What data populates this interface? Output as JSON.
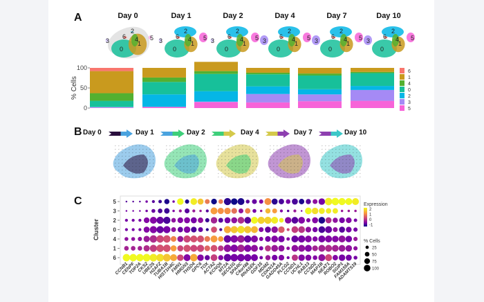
{
  "figure": {
    "panels": {
      "A": {
        "label": "A",
        "days": [
          "Day 0",
          "Day 1",
          "Day 2",
          "Day 4",
          "Day 7",
          "Day 10"
        ],
        "umap_cluster_labels": [
          [
            "3",
            "0",
            "6",
            "2",
            "4",
            "1",
            "5"
          ],
          [
            "3",
            "0",
            "2",
            "4",
            "1",
            "6",
            "5"
          ],
          [
            "3",
            "0",
            "6",
            "2",
            "4",
            "1",
            "5"
          ],
          [
            "3",
            "0",
            "6",
            "2",
            "4",
            "1",
            "5"
          ],
          [
            "3",
            "0",
            "6",
            "2",
            "4",
            "1",
            "5"
          ],
          [
            "3",
            "0",
            "6",
            "2",
            "4",
            "1",
            "5"
          ]
        ]
      },
      "B": {
        "label": "B",
        "days": [
          "Day 0",
          "Day 1",
          "Day 2",
          "Day 4",
          "Day 7",
          "Day 10"
        ],
        "arrow_colors": [
          [
            "#2a0f3d",
            "#4aa3df"
          ],
          [
            "#4aa3df",
            "#3ecf7a"
          ],
          [
            "#3ecf7a",
            "#d4c94a"
          ],
          [
            "#d4c94a",
            "#8e3fb0"
          ],
          [
            "#8e3fb0",
            "#3cc8c8"
          ]
        ]
      },
      "C": {
        "label": "C"
      }
    },
    "cluster_colors": {
      "6": "#f8766d",
      "1": "#c99a1e",
      "4": "#53b030",
      "0": "#17c09a",
      "2": "#05b6e6",
      "3": "#a58af5",
      "5": "#f763d8"
    }
  },
  "chart_data": [
    {
      "type": "bar",
      "subtype": "stacked-percent",
      "title": "",
      "xlabel": "",
      "ylabel": "% Cells",
      "ylim": [
        0,
        100
      ],
      "yticks": [
        "0",
        "50",
        "100"
      ],
      "categories": [
        "Day 0",
        "Day 1",
        "Day 2",
        "Day 4",
        "Day 7",
        "Day 10"
      ],
      "legend_position": "right",
      "legend_order": [
        "6",
        "1",
        "4",
        "0",
        "2",
        "3",
        "5"
      ],
      "stack_order_bottom_to_top": [
        "5",
        "3",
        "2",
        "0",
        "4",
        "1",
        "6"
      ],
      "series": [
        {
          "name": "5",
          "values": [
            1,
            3,
            15,
            14,
            17,
            18
          ]
        },
        {
          "name": "3",
          "values": [
            1,
            0,
            1,
            21,
            17,
            27
          ]
        },
        {
          "name": "2",
          "values": [
            1,
            31,
            26,
            19,
            13,
            10
          ]
        },
        {
          "name": "0",
          "values": [
            15,
            31,
            43,
            30,
            34,
            32
          ]
        },
        {
          "name": "4",
          "values": [
            19,
            11,
            7,
            4,
            5,
            3
          ]
        },
        {
          "name": "1",
          "values": [
            55,
            24,
            23,
            12,
            14,
            10
          ]
        },
        {
          "name": "6",
          "values": [
            8,
            0,
            0,
            0,
            0,
            0
          ]
        }
      ]
    },
    {
      "type": "scatter",
      "subtype": "dotplot",
      "title": "",
      "xlabel": "",
      "ylabel": "Cluster",
      "rows": [
        "5",
        "3",
        "2",
        "0",
        "4",
        "1",
        "6"
      ],
      "genes": [
        "CCNB1",
        "CENPF",
        "TOP2A",
        "CKS2",
        "UBE2S",
        "H2AFZ",
        "TUBA1B",
        "HIST1H4C",
        "FMN1",
        "HMGN3",
        "THSD4",
        "GPC6",
        "TOX",
        "ACTA2",
        "KCNQ5",
        "MT2A",
        "SEC61G",
        "SPARC",
        "C4orf48",
        "RNASEK",
        "GDF15",
        "MDM2",
        "CDKN1A",
        "GADD45A",
        "PLCG2",
        "CCND1",
        "UCHL1",
        "RAB13",
        "CCND2",
        "MAP1B",
        "NEAT1",
        "ROBO2",
        "SGIP1",
        "FAM155A",
        "ADAMTS19"
      ],
      "color_legend": {
        "title": "Expression",
        "ticks": [
          "2",
          "1",
          "0",
          "-1"
        ],
        "range": [
          -1,
          2
        ]
      },
      "size_legend": {
        "title": "% Cells",
        "values": [
          25,
          50,
          75,
          100
        ]
      },
      "expression": [
        [
          -0.5,
          -0.5,
          -0.5,
          -0.3,
          -0.5,
          -0.7,
          -0.9,
          -0.3,
          2.0,
          -0.9,
          1.9,
          1.6,
          1.0,
          -1.0,
          1.0,
          -0.8,
          -1.0,
          -0.9,
          -0.5,
          -0.4,
          -0.2,
          1.2,
          -0.8,
          -0.6,
          -0.3,
          -0.6,
          -0.9,
          -0.5,
          -0.1,
          -0.3,
          1.9,
          2.0,
          2.0,
          2.0,
          1.9
        ],
        [
          -0.3,
          -0.3,
          -0.3,
          -0.3,
          -0.4,
          -0.6,
          -0.7,
          -0.2,
          0.0,
          -0.5,
          0.0,
          0.0,
          -0.5,
          1.3,
          1.2,
          1.2,
          0.9,
          -0.1,
          1.1,
          -0.3,
          0.0,
          1.5,
          1.3,
          -0.2,
          -0.5,
          0.0,
          -0.2,
          2.0,
          1.8,
          1.9,
          1.9,
          1.9,
          0.0,
          0.0,
          0.0
        ],
        [
          -0.3,
          -0.3,
          -0.3,
          -0.2,
          -0.2,
          -0.4,
          -0.6,
          -0.1,
          -0.2,
          -0.2,
          -0.3,
          -0.1,
          -0.7,
          0.1,
          -0.5,
          -0.3,
          -0.1,
          0.2,
          -0.5,
          2.0,
          1.7,
          1.7,
          1.9,
          1.9,
          -0.2,
          -0.5,
          -0.2,
          -0.2,
          -0.2,
          -0.9,
          0.2,
          -0.1,
          -0.3,
          -0.2,
          -0.3
        ],
        [
          -0.3,
          -0.3,
          -0.3,
          -0.2,
          -0.2,
          -0.4,
          -0.3,
          -0.1,
          -0.4,
          -0.2,
          -0.6,
          -0.4,
          -0.8,
          0.6,
          -0.6,
          1.4,
          1.6,
          1.8,
          1.6,
          1.5,
          -0.2,
          -0.4,
          -0.1,
          0.7,
          0.5,
          0.4,
          0.3,
          -0.1,
          -0.3,
          -0.6,
          -0.4,
          -0.1,
          -0.5,
          -0.3,
          -0.3
        ],
        [
          -0.1,
          -0.1,
          -0.1,
          0.0,
          0.2,
          0.5,
          0.6,
          1.1,
          0.0,
          0.5,
          0.6,
          0.6,
          1.0,
          1.3,
          1.3,
          -0.4,
          -0.2,
          0.0,
          -0.4,
          -0.2,
          -0.2,
          -0.3,
          -0.2,
          -0.3,
          -0.2,
          -0.4,
          -0.3,
          -0.2,
          -0.2,
          -0.3,
          -0.2,
          -0.2,
          -0.1,
          -0.3,
          0.0
        ],
        [
          0.1,
          0.1,
          0.1,
          0.2,
          0.4,
          0.6,
          0.6,
          1.3,
          0.5,
          0.6,
          0.5,
          0.5,
          0.8,
          0.6,
          0.3,
          -0.1,
          -0.2,
          0.1,
          -0.2,
          -0.1,
          -0.2,
          0.3,
          0.0,
          -0.1,
          -0.1,
          -0.1,
          -0.1,
          -0.2,
          0.1,
          0.1,
          0.2,
          0.1,
          0.0,
          -0.1,
          -0.1
        ],
        [
          2.0,
          2.0,
          2.0,
          2.0,
          1.9,
          1.8,
          1.6,
          1.4,
          0.5,
          -0.2,
          1.4,
          -0.2,
          -0.4,
          0.4,
          -0.2,
          -0.4,
          -0.3,
          -0.3,
          -0.3,
          -0.3,
          -0.3,
          0.0,
          -0.3,
          -0.2,
          -0.3,
          0.3,
          -0.2,
          -0.2,
          -0.2,
          -0.1,
          0.5,
          -0.2,
          -0.3,
          -0.3,
          -0.3
        ]
      ],
      "pct_cells": [
        [
          5,
          5,
          5,
          10,
          15,
          20,
          45,
          10,
          70,
          30,
          75,
          60,
          40,
          55,
          35,
          85,
          70,
          80,
          25,
          40,
          30,
          80,
          60,
          50,
          35,
          60,
          50,
          45,
          40,
          70,
          90,
          90,
          85,
          80,
          80
        ],
        [
          5,
          5,
          5,
          10,
          25,
          35,
          50,
          10,
          15,
          40,
          15,
          10,
          15,
          80,
          65,
          70,
          55,
          40,
          50,
          25,
          10,
          45,
          40,
          15,
          10,
          15,
          5,
          75,
          70,
          60,
          50,
          50,
          10,
          10,
          10
        ],
        [
          15,
          15,
          15,
          55,
          80,
          85,
          85,
          35,
          55,
          60,
          60,
          50,
          30,
          70,
          40,
          60,
          60,
          75,
          75,
          80,
          85,
          85,
          80,
          35,
          70,
          75,
          75,
          30,
          60,
          75,
          60,
          45,
          55,
          55,
          20
        ],
        [
          15,
          15,
          15,
          60,
          85,
          85,
          85,
          40,
          50,
          70,
          55,
          40,
          15,
          60,
          15,
          85,
          85,
          90,
          85,
          80,
          40,
          60,
          70,
          70,
          15,
          75,
          75,
          55,
          45,
          75,
          80,
          40,
          60,
          55,
          30
        ],
        [
          25,
          25,
          30,
          65,
          90,
          90,
          90,
          55,
          60,
          85,
          80,
          80,
          55,
          80,
          50,
          90,
          90,
          90,
          85,
          80,
          30,
          55,
          75,
          70,
          20,
          80,
          85,
          75,
          45,
          80,
          80,
          70,
          80,
          70,
          30
        ],
        [
          35,
          35,
          35,
          65,
          85,
          90,
          90,
          60,
          60,
          85,
          80,
          85,
          55,
          75,
          55,
          90,
          90,
          90,
          85,
          80,
          30,
          60,
          75,
          65,
          20,
          75,
          80,
          80,
          55,
          80,
          80,
          75,
          75,
          70,
          30
        ],
        [
          90,
          90,
          90,
          95,
          95,
          95,
          95,
          80,
          70,
          80,
          90,
          70,
          45,
          75,
          45,
          90,
          90,
          90,
          85,
          80,
          20,
          45,
          55,
          55,
          15,
          65,
          70,
          60,
          35,
          80,
          80,
          50,
          70,
          60,
          25
        ]
      ]
    }
  ]
}
